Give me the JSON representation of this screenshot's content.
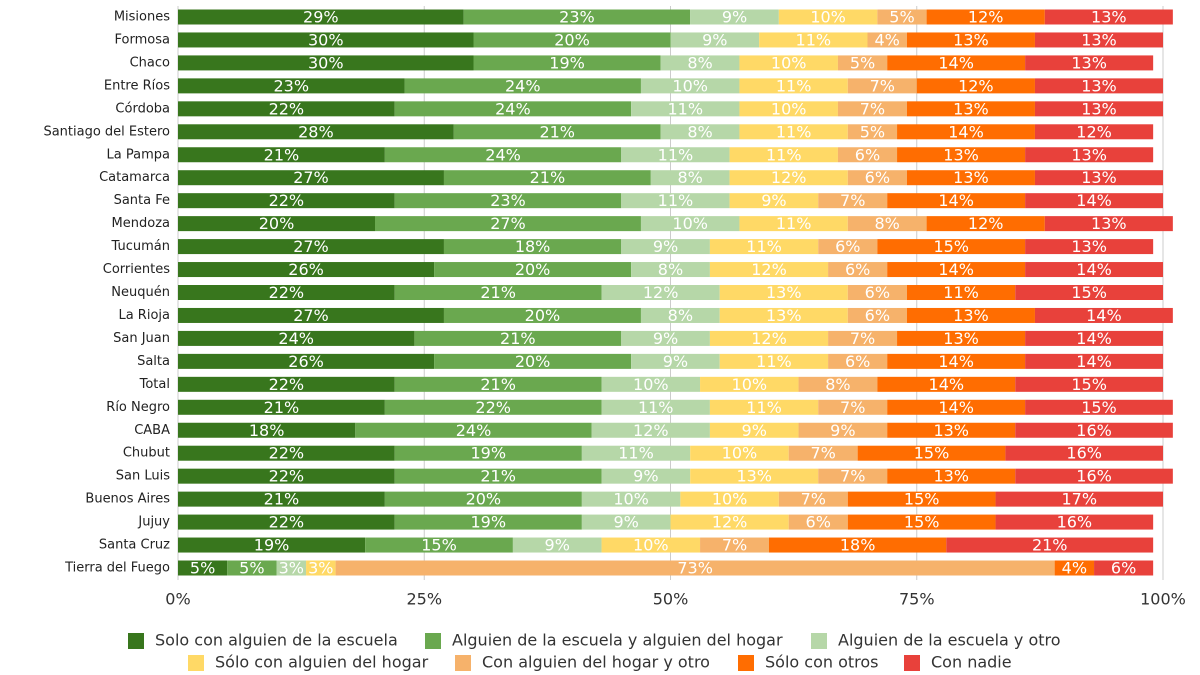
{
  "chart_data": {
    "type": "stacked-bar-horizontal",
    "categories": [
      "Misiones",
      "Formosa",
      "Chaco",
      "Entre Ríos",
      "Córdoba",
      "Santiago del Estero",
      "La Pampa",
      "Catamarca",
      "Santa Fe",
      "Mendoza",
      "Tucumán",
      "Corrientes",
      "Neuquén",
      "La Rioja",
      "San Juan",
      "Salta",
      "Total",
      "Río Negro",
      "CABA",
      "Chubut",
      "San Luis",
      "Buenos Aires",
      "Jujuy",
      "Santa Cruz",
      "Tierra del Fuego"
    ],
    "xlim": [
      0,
      100
    ],
    "xticks": [
      {
        "value": 0,
        "label": "0%"
      },
      {
        "value": 25,
        "label": "25%"
      },
      {
        "value": 50,
        "label": "50%"
      },
      {
        "value": 75,
        "label": "75%"
      },
      {
        "value": 100,
        "label": "100%"
      }
    ],
    "grid": true,
    "legend": "bottom",
    "series": [
      {
        "name": "Solo con alguien de la escuela",
        "color": "#38761d",
        "values": [
          29,
          30,
          30,
          23,
          22,
          28,
          21,
          27,
          22,
          20,
          27,
          26,
          22,
          27,
          24,
          26,
          22,
          21,
          18,
          22,
          22,
          21,
          22,
          19,
          5
        ],
        "value_labels": [
          "29%",
          "30%",
          "30%",
          "23%",
          "22%",
          "28%",
          "21%",
          "27%",
          "22%",
          "20%",
          "27%",
          "26%",
          "22%",
          "27%",
          "24%",
          "26%",
          "22%",
          "21%",
          "18%",
          "22%",
          "22%",
          "21%",
          "22%",
          "19%",
          "5%"
        ]
      },
      {
        "name": "Alguien de la escuela y alguien del hogar",
        "color": "#6aa84f",
        "values": [
          23,
          20,
          19,
          24,
          24,
          21,
          24,
          21,
          23,
          27,
          18,
          20,
          21,
          20,
          21,
          20,
          21,
          22,
          24,
          19,
          21,
          20,
          19,
          15,
          5
        ],
        "value_labels": [
          "23%",
          "20%",
          "19%",
          "24%",
          "24%",
          "21%",
          "24%",
          "21%",
          "23%",
          "27%",
          "18%",
          "20%",
          "21%",
          "20%",
          "21%",
          "20%",
          "21%",
          "22%",
          "24%",
          "19%",
          "21%",
          "20%",
          "19%",
          "15%",
          "5%"
        ]
      },
      {
        "name": "Alguien de la escuela  y otro",
        "color": "#b6d7a8",
        "values": [
          9,
          9,
          8,
          10,
          11,
          8,
          11,
          8,
          11,
          10,
          9,
          8,
          12,
          8,
          9,
          9,
          10,
          11,
          12,
          11,
          9,
          10,
          9,
          9,
          3
        ],
        "value_labels": [
          "9%",
          "9%",
          "8%",
          "10%",
          "11%",
          "8%",
          "11%",
          "8%",
          "11%",
          "10%",
          "9%",
          "8%",
          "12%",
          "8%",
          "9%",
          "9%",
          "10%",
          "11%",
          "12%",
          "11%",
          "9%",
          "10%",
          "9%",
          "9%",
          "3%"
        ]
      },
      {
        "name": "Sólo con alguien del hogar",
        "color": "#ffd966",
        "values": [
          10,
          11,
          10,
          11,
          10,
          11,
          11,
          12,
          9,
          11,
          11,
          12,
          13,
          13,
          12,
          11,
          10,
          11,
          9,
          10,
          13,
          10,
          12,
          10,
          3
        ],
        "value_labels": [
          "10%",
          "11%",
          "10%",
          "11%",
          "10%",
          "11%",
          "11%",
          "12%",
          "9%",
          "11%",
          "11%",
          "12%",
          "13%",
          "13%",
          "12%",
          "11%",
          "10%",
          "11%",
          "9%",
          "10%",
          "13%",
          "10%",
          "12%",
          "10%",
          "3%"
        ]
      },
      {
        "name": "Con alguien del hogar y otro",
        "color": "#f6b26b",
        "values": [
          5,
          4,
          5,
          7,
          7,
          5,
          6,
          6,
          7,
          8,
          6,
          6,
          6,
          6,
          7,
          6,
          8,
          7,
          9,
          7,
          7,
          7,
          6,
          7,
          73
        ],
        "value_labels": [
          "5%",
          "4%",
          "5%",
          "7%",
          "7%",
          "5%",
          "6%",
          "6%",
          "7%",
          "8%",
          "6%",
          "6%",
          "6%",
          "6%",
          "7%",
          "6%",
          "8%",
          "7%",
          "9%",
          "7%",
          "7%",
          "7%",
          "6%",
          "7%",
          "73%"
        ]
      },
      {
        "name": "Sólo con otros",
        "color": "#ff6d01",
        "values": [
          12,
          13,
          14,
          12,
          13,
          14,
          13,
          13,
          14,
          12,
          15,
          14,
          11,
          13,
          13,
          14,
          14,
          14,
          13,
          15,
          13,
          15,
          15,
          18,
          4
        ],
        "value_labels": [
          "12%",
          "13%",
          "14%",
          "12%",
          "13%",
          "14%",
          "13%",
          "13%",
          "14%",
          "12%",
          "15%",
          "14%",
          "11%",
          "13%",
          "13%",
          "14%",
          "14%",
          "14%",
          "13%",
          "15%",
          "13%",
          "15%",
          "15%",
          "18%",
          "4%"
        ]
      },
      {
        "name": "Con nadie",
        "color": "#e8413b",
        "values": [
          13,
          13,
          13,
          13,
          13,
          12,
          13,
          13,
          14,
          13,
          13,
          14,
          15,
          14,
          14,
          14,
          15,
          15,
          16,
          16,
          16,
          17,
          16,
          21,
          6
        ],
        "value_labels": [
          "13%",
          "13%",
          "13%",
          "13%",
          "13%",
          "12%",
          "13%",
          "13%",
          "14%",
          "13%",
          "13%",
          "14%",
          "15%",
          "14%",
          "14%",
          "14%",
          "15%",
          "15%",
          "16%",
          "16%",
          "16%",
          "17%",
          "16%",
          "21%",
          "6%"
        ]
      }
    ]
  }
}
